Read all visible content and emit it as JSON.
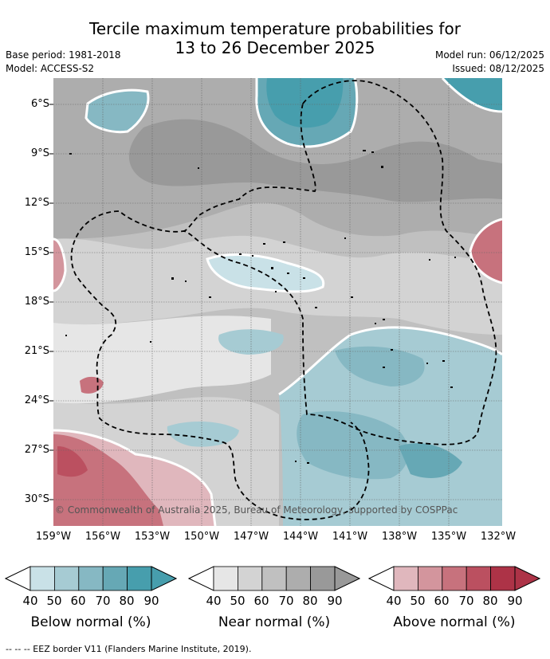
{
  "header": {
    "title_line1": "Tercile maximum temperature probabilities for",
    "title_line2": "13 to 26 December 2025",
    "base_period": "Base period: 1981-2018",
    "model": "Model: ACCESS-S2",
    "model_run": "Model run: 06/12/2025",
    "issued": "Issued: 08/12/2025"
  },
  "map": {
    "y_ticks": [
      "6°S",
      "9°S",
      "12°S",
      "15°S",
      "18°S",
      "21°S",
      "24°S",
      "27°S",
      "30°S"
    ],
    "x_ticks": [
      "159°W",
      "156°W",
      "153°W",
      "150°W",
      "147°W",
      "144°W",
      "141°W",
      "138°W",
      "135°W",
      "132°W"
    ],
    "copyright": "© Commonwealth of Australia 2025, Bureau of Meteorology, supported by COSPPac"
  },
  "legend": {
    "ticks": [
      "40",
      "50",
      "60",
      "70",
      "80",
      "90"
    ],
    "below": {
      "title": "Below normal (%)",
      "colors": [
        "#ffffff",
        "#c9e1e7",
        "#a6cbd3",
        "#86b8c3",
        "#66a8b5",
        "#479ead"
      ]
    },
    "near": {
      "title": "Near normal (%)",
      "colors": [
        "#ffffff",
        "#e6e6e6",
        "#d3d3d3",
        "#c0c0c0",
        "#adadad",
        "#999999"
      ]
    },
    "above": {
      "title": "Above normal (%)",
      "colors": [
        "#ffffff",
        "#e0b7bd",
        "#d3959d",
        "#c7727d",
        "#bb5060",
        "#ad3347"
      ]
    }
  },
  "footnote": "--  --  -- EEZ border V11 (Flanders Marine Institute, 2019)."
}
